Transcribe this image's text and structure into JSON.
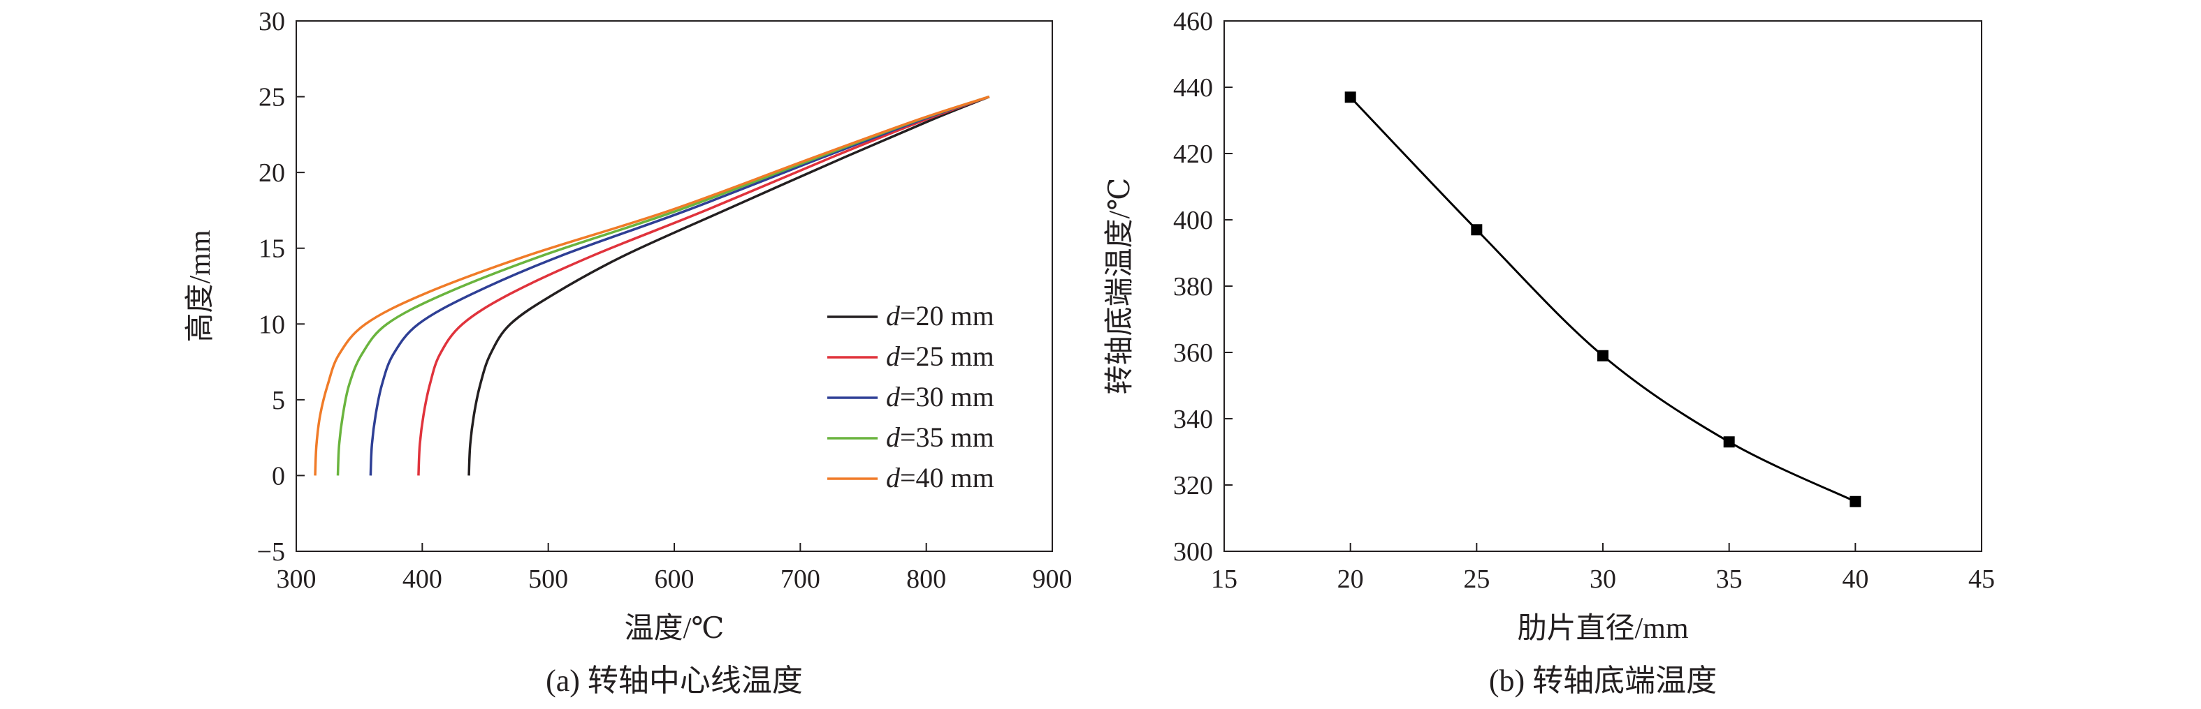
{
  "chart_data": [
    {
      "type": "line",
      "caption": "(a) 转轴中心线温度",
      "xlabel": "温度/℃",
      "ylabel": "高度/mm",
      "xlim": [
        300,
        900
      ],
      "ylim": [
        -5,
        30
      ],
      "xticks": [
        300,
        400,
        500,
        600,
        700,
        800,
        900
      ],
      "yticks": [
        -5,
        0,
        5,
        10,
        15,
        20,
        25,
        30
      ],
      "xtick_labels": [
        "300",
        "400",
        "500",
        "600",
        "700",
        "800",
        "900"
      ],
      "ytick_labels": [
        "−5",
        "0",
        "5",
        "10",
        "15",
        "20",
        "25",
        "30"
      ],
      "grid": false,
      "legend_position": "center-right",
      "series": [
        {
          "name": "d=20 mm",
          "name_italic": "d",
          "name_rest": "=20 mm",
          "color": "#231f20",
          "points": [
            [
              437,
              0
            ],
            [
              438,
              2
            ],
            [
              441,
              4
            ],
            [
              446,
              6
            ],
            [
              454,
              8
            ],
            [
              470,
              10
            ],
            [
              505,
              12
            ],
            [
              560,
              14.5
            ],
            [
              640,
              17.5
            ],
            [
              735,
              21
            ],
            [
              805,
              23.5
            ],
            [
              850,
              25
            ]
          ]
        },
        {
          "name": "d=25 mm",
          "name_italic": "d",
          "name_rest": "=25 mm",
          "color": "#e0333c",
          "points": [
            [
              397,
              0
            ],
            [
              398,
              2
            ],
            [
              401,
              4
            ],
            [
              406,
              6
            ],
            [
              414,
              8
            ],
            [
              432,
              10
            ],
            [
              470,
              12
            ],
            [
              535,
              14.5
            ],
            [
              625,
              17.5
            ],
            [
              725,
              21
            ],
            [
              800,
              23.5
            ],
            [
              850,
              25
            ]
          ]
        },
        {
          "name": "d=30 mm",
          "name_italic": "d",
          "name_rest": "=30 mm",
          "color": "#2e3f95",
          "points": [
            [
              359,
              0
            ],
            [
              360,
              2
            ],
            [
              363,
              4
            ],
            [
              368,
              6
            ],
            [
              377,
              8
            ],
            [
              397,
              10
            ],
            [
              440,
              12
            ],
            [
              510,
              14.5
            ],
            [
              610,
              17.5
            ],
            [
              718,
              21
            ],
            [
              797,
              23.5
            ],
            [
              850,
              25
            ]
          ]
        },
        {
          "name": "d=35 mm",
          "name_italic": "d",
          "name_rest": "=35 mm",
          "color": "#6ab43e",
          "points": [
            [
              333,
              0
            ],
            [
              334,
              2
            ],
            [
              337,
              4
            ],
            [
              342,
              6
            ],
            [
              352,
              8
            ],
            [
              372,
              10
            ],
            [
              418,
              12
            ],
            [
              495,
              14.5
            ],
            [
              603,
              17.5
            ],
            [
              714,
              21
            ],
            [
              795,
              23.5
            ],
            [
              850,
              25
            ]
          ]
        },
        {
          "name": "d=40 mm",
          "name_italic": "d",
          "name_rest": "=40 mm",
          "color": "#f07b28",
          "points": [
            [
              315,
              0
            ],
            [
              316,
              2
            ],
            [
              319,
              4
            ],
            [
              325,
              6
            ],
            [
              334,
              8
            ],
            [
              355,
              10
            ],
            [
              402,
              12
            ],
            [
              483,
              14.5
            ],
            [
              597,
              17.5
            ],
            [
              711,
              21
            ],
            [
              794,
              23.5
            ],
            [
              850,
              25
            ]
          ]
        }
      ]
    },
    {
      "type": "line",
      "caption": "(b) 转轴底端温度",
      "xlabel": "肋片直径/mm",
      "ylabel": "转轴底端温度/℃",
      "xlim": [
        15,
        45
      ],
      "ylim": [
        300,
        460
      ],
      "xticks": [
        15,
        20,
        25,
        30,
        35,
        40,
        45
      ],
      "yticks": [
        300,
        320,
        340,
        360,
        380,
        400,
        420,
        440,
        460
      ],
      "grid": false,
      "markers": "square",
      "series": [
        {
          "color": "#000000",
          "x": [
            20,
            25,
            30,
            35,
            40
          ],
          "y": [
            437,
            397,
            359,
            333,
            315
          ]
        }
      ]
    }
  ]
}
